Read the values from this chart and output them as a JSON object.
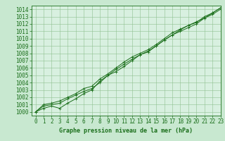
{
  "background_color": "#c8e8d0",
  "plot_bg_color": "#d8f0e0",
  "grid_color": "#90c090",
  "line_color": "#1a6e1a",
  "xlabel": "Graphe pression niveau de la mer (hPa)",
  "ylim": [
    999.5,
    1014.5
  ],
  "xlim": [
    -0.5,
    23
  ],
  "yticks": [
    1000,
    1001,
    1002,
    1003,
    1004,
    1005,
    1006,
    1007,
    1008,
    1009,
    1010,
    1011,
    1012,
    1013,
    1014
  ],
  "xticks": [
    0,
    1,
    2,
    3,
    4,
    5,
    6,
    7,
    8,
    9,
    10,
    11,
    12,
    13,
    14,
    15,
    16,
    17,
    18,
    19,
    20,
    21,
    22,
    23
  ],
  "line1_x": [
    0,
    1,
    2,
    3,
    4,
    5,
    6,
    7,
    8,
    9,
    10,
    11,
    12,
    13,
    14,
    15,
    16,
    17,
    18,
    19,
    20,
    21,
    22,
    23
  ],
  "line1_y": [
    1000.0,
    1000.8,
    1001.0,
    1001.2,
    1001.8,
    1002.3,
    1002.8,
    1003.2,
    1004.0,
    1005.0,
    1005.8,
    1006.5,
    1007.2,
    1007.8,
    1008.3,
    1009.0,
    1009.8,
    1010.5,
    1011.0,
    1011.5,
    1012.0,
    1012.8,
    1013.3,
    1014.0
  ],
  "line2_x": [
    0,
    1,
    2,
    3,
    4,
    5,
    6,
    7,
    8,
    9,
    10,
    11,
    12,
    13,
    14,
    15,
    16,
    17,
    18,
    19,
    20,
    21,
    22,
    23
  ],
  "line2_y": [
    1000.0,
    1000.5,
    1000.8,
    1000.5,
    1001.2,
    1001.8,
    1002.5,
    1003.0,
    1004.2,
    1005.0,
    1005.5,
    1006.2,
    1007.0,
    1007.8,
    1008.2,
    1009.0,
    1009.8,
    1010.5,
    1011.2,
    1011.8,
    1012.3,
    1012.8,
    1013.5,
    1014.2
  ],
  "line3_x": [
    0,
    1,
    2,
    3,
    4,
    5,
    6,
    7,
    8,
    9,
    10,
    11,
    12,
    13,
    14,
    15,
    16,
    17,
    18,
    19,
    20,
    21,
    22,
    23
  ],
  "line3_y": [
    1000.0,
    1001.0,
    1001.2,
    1001.5,
    1002.0,
    1002.5,
    1003.2,
    1003.5,
    1004.5,
    1005.2,
    1006.0,
    1006.8,
    1007.5,
    1008.0,
    1008.5,
    1009.2,
    1010.0,
    1010.8,
    1011.3,
    1011.8,
    1012.2,
    1013.0,
    1013.5,
    1014.2
  ],
  "tick_fontsize": 5.5,
  "xlabel_fontsize": 6.0,
  "marker_size": 2.5,
  "line_width": 0.7
}
